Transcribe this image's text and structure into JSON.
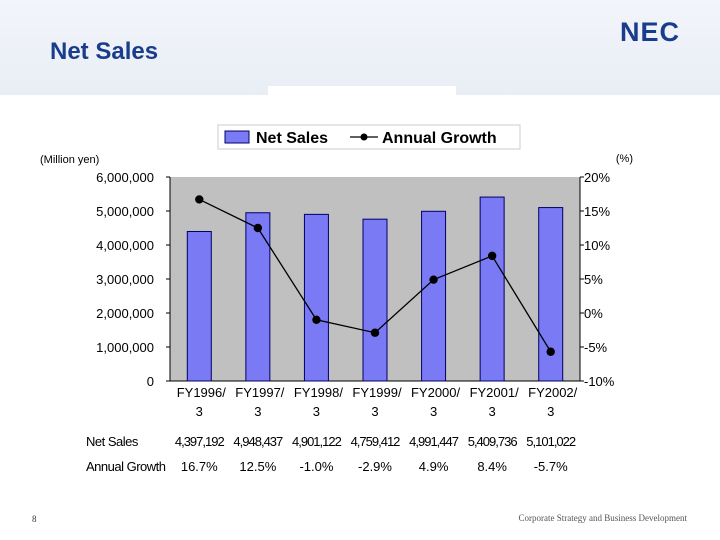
{
  "slide": {
    "title": "Net Sales",
    "logo_text": "NEC",
    "page_number": "8",
    "footer": "Corporate Strategy and Business Development"
  },
  "colors": {
    "bar_fill": "#7a7af5",
    "bar_stroke": "#000066",
    "plot_bg": "#c0c0c0",
    "line": "#000000",
    "title": "#1a3c8c",
    "logo": "#1a3c8c"
  },
  "chart_data": {
    "type": "bar",
    "title": "",
    "left_axis_unit": "(Million yen)",
    "right_axis_unit": "(%)",
    "legend": [
      "Net Sales",
      "Annual Growth"
    ],
    "legend_position": "top-center",
    "categories": [
      "FY1996/3",
      "FY1997/3",
      "FY1998/3",
      "FY1999/3",
      "FY2000/3",
      "FY2001/3",
      "FY2002/3"
    ],
    "category_lines": [
      [
        "FY1996/",
        "3"
      ],
      [
        "FY1997/",
        "3"
      ],
      [
        "FY1998/",
        "3"
      ],
      [
        "FY1999/",
        "3"
      ],
      [
        "FY2000/",
        "3"
      ],
      [
        "FY2001/",
        "3"
      ],
      [
        "FY2002/",
        "3"
      ]
    ],
    "series": [
      {
        "name": "Net Sales",
        "type": "bar",
        "axis": "left",
        "values": [
          4397192,
          4948437,
          4901122,
          4759412,
          4991447,
          5409736,
          5101022
        ]
      },
      {
        "name": "Annual Growth",
        "type": "line",
        "axis": "right",
        "unit": "%",
        "values": [
          16.7,
          12.5,
          -1.0,
          -2.9,
          4.9,
          8.4,
          -5.7
        ]
      }
    ],
    "y_left": {
      "min": 0,
      "max": 6000000,
      "ticks": [
        "0",
        "1,000,000",
        "2,000,000",
        "3,000,000",
        "4,000,000",
        "5,000,000",
        "6,000,000"
      ]
    },
    "y_right": {
      "min": -10,
      "max": 20,
      "ticks": [
        "-10%",
        "-5%",
        "0%",
        "5%",
        "10%",
        "15%",
        "20%"
      ]
    },
    "table": {
      "row_labels": [
        "Net Sales",
        "Annual Growth"
      ],
      "net_sales": [
        "4,397,192",
        "4,948,437",
        "4,901,122",
        "4,759,412",
        "4,991,447",
        "5,409,736",
        "5,101,022"
      ],
      "annual_growth": [
        "16.7%",
        "12.5%",
        "-1.0%",
        "-2.9%",
        "4.9%",
        "8.4%",
        "-5.7%"
      ]
    }
  }
}
